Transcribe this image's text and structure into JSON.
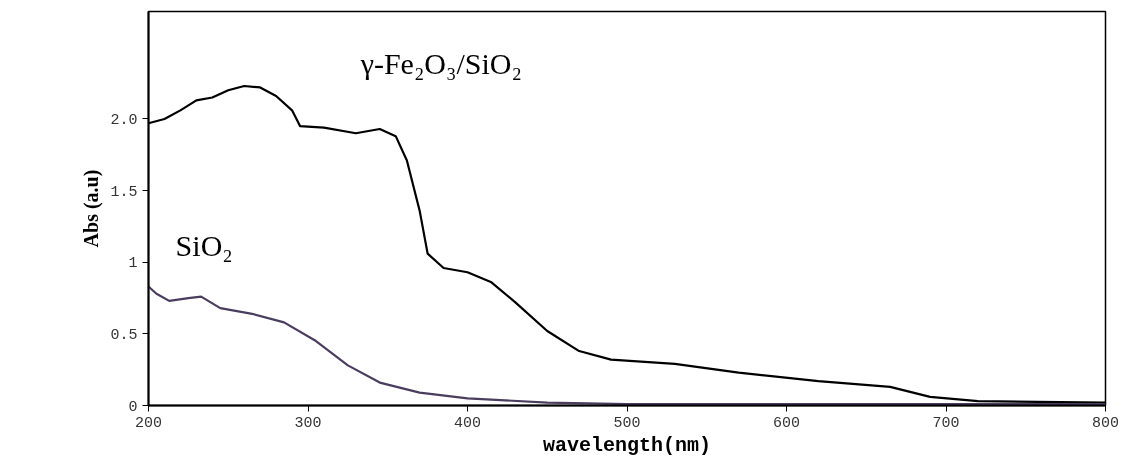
{
  "chart_data": {
    "type": "line",
    "xlabel": "wavelength(nm)",
    "ylabel": "Abs (a.u)",
    "xlim": [
      200,
      800
    ],
    "xticks": [
      200,
      300,
      400,
      500,
      600,
      700,
      800
    ],
    "ylim": [
      0,
      2.75
    ],
    "yticks": [
      0,
      0.5,
      1,
      1.5,
      {
        "value": 2,
        "label": "2.0"
      }
    ],
    "grid": false,
    "legend": false,
    "marker": "none",
    "line_style": "solid",
    "series": [
      {
        "name": "γ-Fe₂O₃/SiO₂",
        "color": "#000000",
        "x": [
          200,
          210,
          220,
          230,
          240,
          250,
          260,
          270,
          280,
          290,
          295,
          310,
          330,
          345,
          355,
          362,
          370,
          375,
          385,
          400,
          415,
          430,
          450,
          470,
          490,
          530,
          570,
          620,
          665,
          690,
          720,
          800
        ],
        "values": [
          1.97,
          2.0,
          2.06,
          2.13,
          2.15,
          2.2,
          2.23,
          2.22,
          2.16,
          2.06,
          1.95,
          1.94,
          1.9,
          1.93,
          1.88,
          1.71,
          1.36,
          1.06,
          0.96,
          0.93,
          0.86,
          0.72,
          0.52,
          0.38,
          0.32,
          0.29,
          0.23,
          0.17,
          0.13,
          0.06,
          0.03,
          0.02
        ]
      },
      {
        "name": "SiO₂",
        "color": "#4a3d5e",
        "x": [
          200,
          205,
          213,
          225,
          233,
          245,
          265,
          285,
          305,
          325,
          345,
          370,
          400,
          450,
          500,
          800
        ],
        "values": [
          0.83,
          0.78,
          0.73,
          0.75,
          0.76,
          0.68,
          0.64,
          0.58,
          0.45,
          0.28,
          0.16,
          0.09,
          0.05,
          0.02,
          0.01,
          0.01
        ]
      }
    ]
  }
}
